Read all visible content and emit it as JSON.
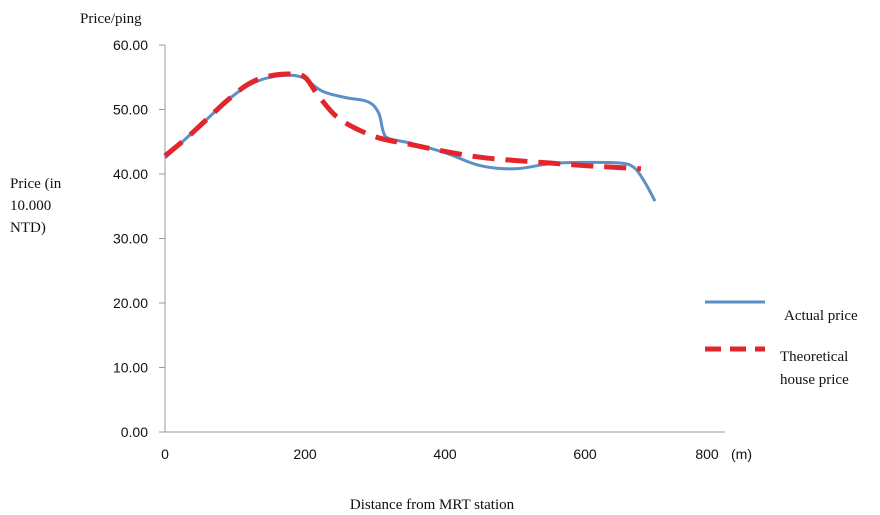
{
  "chart_data": {
    "type": "line",
    "y_unit_label": "Price/ping",
    "ylabel": "Price (in 10.000 NTD)",
    "ylabel_lines": [
      "Price (in",
      "10.000",
      "NTD)"
    ],
    "xlabel": "Distance from MRT station",
    "x_unit": "(m)",
    "xlim": [
      0,
      800
    ],
    "ylim": [
      0,
      60
    ],
    "x_ticks": [
      0,
      200,
      400,
      600,
      800
    ],
    "y_ticks": [
      "0.00",
      "10.00",
      "20.00",
      "30.00",
      "40.00",
      "50.00",
      "60.00"
    ],
    "grid": false,
    "legend_position": "right",
    "series": [
      {
        "name": "Actual price",
        "color": "#5b8fc7",
        "style": "solid",
        "x": [
          0,
          30,
          60,
          90,
          120,
          150,
          180,
          200,
          215,
          230,
          260,
          290,
          305,
          312,
          320,
          350,
          400,
          450,
          500,
          550,
          600,
          650,
          670,
          685,
          700
        ],
        "y": [
          42.5,
          45.5,
          48.5,
          51.5,
          53.8,
          55.0,
          55.3,
          54.8,
          53.5,
          52.6,
          51.8,
          51.2,
          49.5,
          46.5,
          45.5,
          44.8,
          43.3,
          41.3,
          40.8,
          41.6,
          41.8,
          41.7,
          41.0,
          38.8,
          35.8
        ]
      },
      {
        "name": "Theoretical house price",
        "color": "#e3262b",
        "style": "dashed",
        "x": [
          0,
          30,
          60,
          90,
          120,
          150,
          180,
          200,
          220,
          250,
          300,
          350,
          400,
          450,
          500,
          550,
          600,
          650,
          680
        ],
        "y": [
          42.8,
          45.5,
          48.5,
          51.5,
          54.0,
          55.2,
          55.5,
          55.0,
          52.0,
          48.5,
          45.8,
          44.6,
          43.5,
          42.6,
          42.1,
          41.7,
          41.3,
          41.0,
          40.8
        ]
      }
    ]
  }
}
